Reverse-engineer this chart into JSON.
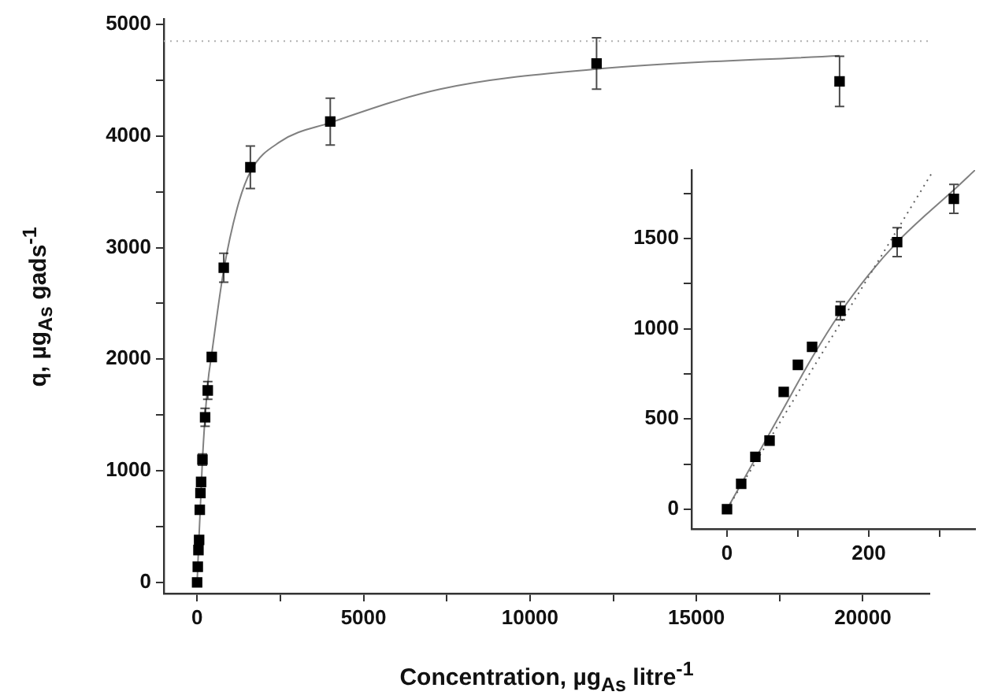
{
  "chart_data": [
    {
      "type": "scatter",
      "xlabel": "Concentration, µg$_{As}$ litre$^{-1}$",
      "ylabel": "q, µg$_{As}$ gads$^{-1}$",
      "xlim": [
        -1000,
        22000
      ],
      "xticks": [
        0,
        {
          "value": 2500,
          "label": null
        },
        5000,
        {
          "value": 7500,
          "label": null
        },
        10000,
        {
          "value": 12500,
          "label": null
        },
        15000,
        {
          "value": 17500,
          "label": null
        },
        20000
      ],
      "ylim": [
        -100,
        5050
      ],
      "yticks": [
        0,
        {
          "value": 500,
          "label": null
        },
        1000,
        {
          "value": 1500,
          "label": null
        },
        2000,
        {
          "value": 2500,
          "label": null
        },
        3000,
        {
          "value": 3500,
          "label": null
        },
        4000,
        {
          "value": 4500,
          "label": null
        },
        5000
      ],
      "grid": false,
      "legend": false,
      "ref_lines": [
        {
          "axis": "y",
          "value": 4850,
          "color": "#b0b0b0",
          "line_style": "dotted"
        }
      ],
      "series": [
        {
          "type": "line",
          "color": "#808080",
          "line_style": "solid",
          "marker": "none",
          "x": [
            0,
            160,
            320,
            440,
            800,
            1200,
            1600,
            2500,
            4000,
            7300,
            12000,
            19300
          ],
          "values": [
            0,
            1100,
            1780,
            2050,
            2800,
            3350,
            3680,
            3950,
            4120,
            4420,
            4600,
            4720
          ]
        },
        {
          "color": "#000000",
          "marker": "square",
          "x": [
            0,
            20,
            40,
            60,
            80,
            100,
            120,
            160,
            240,
            320,
            440,
            800,
            1600,
            4000,
            12000,
            19300
          ],
          "values": [
            0,
            140,
            290,
            380,
            650,
            800,
            900,
            1100,
            1480,
            1720,
            2020,
            2820,
            3720,
            4130,
            4650,
            4490
          ],
          "errors": [
            null,
            null,
            null,
            null,
            null,
            null,
            null,
            50,
            80,
            80,
            null,
            130,
            190,
            210,
            230,
            225
          ]
        }
      ]
    },
    {
      "type": "scatter",
      "xlim": [
        -50,
        350
      ],
      "xticks": [
        0,
        {
          "value": 100,
          "label": null
        },
        200,
        {
          "value": 300,
          "label": null
        }
      ],
      "ylim": [
        -110,
        1880
      ],
      "yticks": [
        0,
        {
          "value": 250,
          "label": null
        },
        500,
        {
          "value": 750,
          "label": null
        },
        1000,
        {
          "value": 1250,
          "label": null
        },
        1500,
        {
          "value": 1750,
          "label": null
        }
      ],
      "grid": false,
      "legend": false,
      "series": [
        {
          "type": "line",
          "color": "#606060",
          "line_style": "dotted",
          "marker": "none",
          "x": [
            0,
            290
          ],
          "values": [
            0,
            1870
          ]
        },
        {
          "type": "line",
          "color": "#808080",
          "line_style": "solid",
          "marker": "none",
          "x": [
            0,
            40,
            80,
            120,
            160,
            200,
            240,
            280,
            320,
            350
          ],
          "values": [
            0,
            280,
            560,
            840,
            1090,
            1300,
            1480,
            1630,
            1770,
            1880
          ]
        },
        {
          "color": "#000000",
          "marker": "square",
          "x": [
            0,
            20,
            40,
            60,
            80,
            100,
            120,
            160,
            240,
            320
          ],
          "values": [
            0,
            140,
            290,
            380,
            650,
            800,
            900,
            1100,
            1480,
            1720
          ],
          "errors": [
            null,
            null,
            null,
            null,
            null,
            null,
            null,
            50,
            80,
            80
          ]
        }
      ]
    }
  ]
}
